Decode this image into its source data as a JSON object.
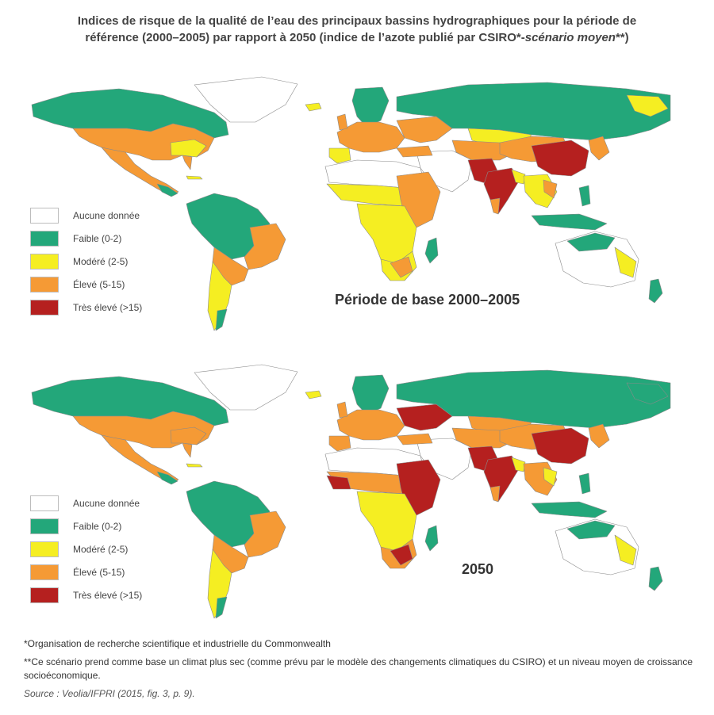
{
  "title": {
    "line1": "Indices de risque de la qualité de l’eau des principaux bassins hydrographiques pour la période de",
    "line2_normal": "référence (2000–2005) par rapport à 2050 (indice de l’azote publié par CSIRO*-",
    "line2_italic": "scénario moyen",
    "line2_end": "**)"
  },
  "legend": [
    {
      "label": "Aucune donnée",
      "color": "#ffffff"
    },
    {
      "label": "Faible (0-2)",
      "color": "#23a77a"
    },
    {
      "label": "Modéré (2-5)",
      "color": "#f5ee22"
    },
    {
      "label": "Élevé (5-15)",
      "color": "#f59a35"
    },
    {
      "label": "Très élevé (>15)",
      "color": "#b5201f"
    }
  ],
  "maps": [
    {
      "period_label": "Période de base 2000–2005"
    },
    {
      "period_label": "2050"
    }
  ],
  "notes": {
    "note1": "*Organisation de recherche scientifique et industrielle du Commonwealth",
    "note2": "**Ce scénario prend comme base un climat plus sec (comme prévu par le modèle des changements climatiques du CSIRO) et un niveau moyen de croissance socioéconomique.",
    "source": "Source : Veolia/IFPRI (2015, fig. 3, p. 9)."
  }
}
